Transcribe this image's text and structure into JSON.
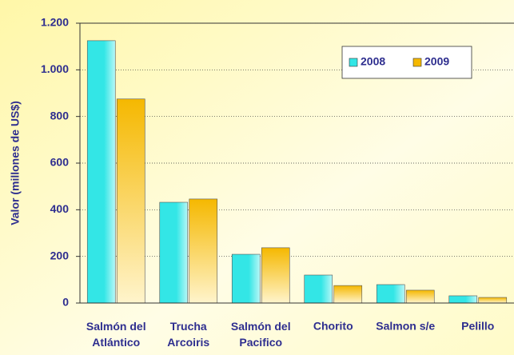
{
  "chart_data": {
    "type": "bar",
    "y_label": "Valor (millones de US$)",
    "categories": [
      "Salmón del Atlántico",
      "Trucha Arcoiris",
      "Salmón del Pacifico",
      "Chorito",
      "Salmon s/e",
      "Pelillo"
    ],
    "series": [
      {
        "name": "2008",
        "color": "#33e6e6",
        "values": [
          1125,
          432,
          209,
          120,
          79,
          31
        ]
      },
      {
        "name": "2009",
        "color": "#f5b800",
        "values": [
          875,
          446,
          237,
          75,
          55,
          24
        ]
      }
    ],
    "ylim": [
      0,
      1200
    ],
    "yticks": [
      0,
      200,
      400,
      600,
      800,
      {
        "value": 1000,
        "label": "1.000"
      },
      {
        "value": 1200,
        "label": "1.200"
      }
    ],
    "grid": true,
    "legend": "top-right"
  }
}
